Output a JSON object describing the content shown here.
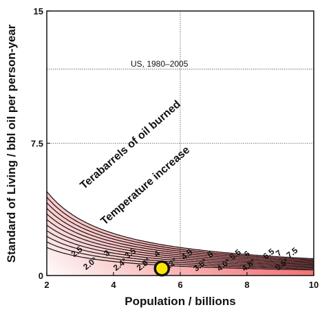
{
  "chart_data": {
    "type": "contour",
    "xlabel": "Population / billions",
    "ylabel": "Standard of Living / bbl oil per person-year",
    "xlim": [
      2,
      10
    ],
    "ylim": [
      0,
      15
    ],
    "xticks": [
      "2",
      "4",
      "6",
      "8",
      "10"
    ],
    "yticks": [
      "0",
      "7.5",
      "15"
    ],
    "reference_lines": {
      "x": 6,
      "y": [
        7.5,
        11.7
      ]
    },
    "annotation_us": "US, 1980–2005",
    "annotation_terabarrels": "Terabarrels of oil burned",
    "annotation_temperature": "Temperature increase",
    "contours": [
      {
        "tb": "2.5",
        "temp": "2.0°",
        "level": 2.5
      },
      {
        "tb": "3",
        "temp": "2.4°",
        "level": 3
      },
      {
        "tb": "3.5",
        "temp": "2.8°",
        "level": 3.5
      },
      {
        "tb": "4",
        "temp": "3.2°",
        "level": 4
      },
      {
        "tb": "4.5",
        "temp": "3.6°",
        "level": 4.5
      },
      {
        "tb": "5",
        "temp": "4.0°",
        "level": 5
      },
      {
        "tb": "5.5",
        "temp": "4.8°",
        "level": 5.5
      },
      {
        "tb": "6",
        "temp": "",
        "level": 6
      },
      {
        "tb": "6.5",
        "temp": "5.6°",
        "level": 6.5
      },
      {
        "tb": "7",
        "temp": "",
        "level": 7
      },
      {
        "tb": "7.5",
        "temp": "",
        "level": 7.5
      }
    ],
    "marker": {
      "x": 5.45,
      "y": 0.4
    },
    "colors": {
      "red": "#e8262b",
      "marker_fill": "#ffe600",
      "marker_stroke": "#111111"
    }
  }
}
